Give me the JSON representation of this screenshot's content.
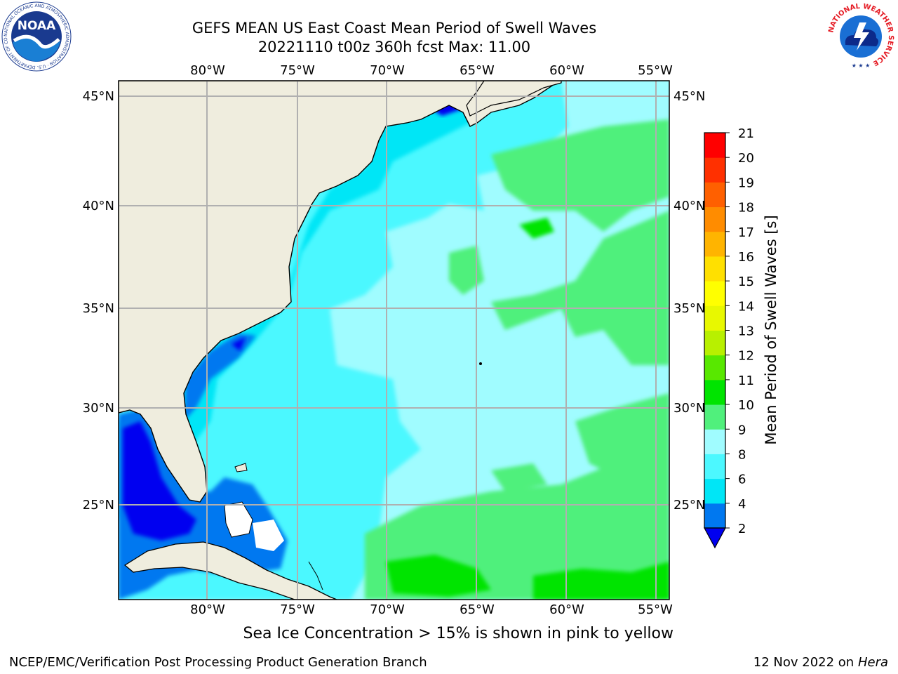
{
  "header": {
    "title_line1": "GEFS MEAN US East Coast Mean Period of Swell Waves",
    "title_line2": "20221110 t00z 360h fcst   Max: 11.00"
  },
  "logos": {
    "left": {
      "name": "NOAA",
      "text": "NOAA",
      "ring_text": "NATIONAL OCEANIC AND ATMOSPHERIC ADMINISTRATION · U.S. DEPARTMENT OF COMMERCE"
    },
    "right": {
      "name": "National Weather Service",
      "ring_text": "NATIONAL WEATHER SERVICE"
    }
  },
  "map": {
    "lon_labels": [
      "80°W",
      "75°W",
      "70°W",
      "65°W",
      "60°W",
      "55°W"
    ],
    "lat_labels": [
      "45°N",
      "40°N",
      "35°N",
      "30°N",
      "25°N"
    ],
    "colors": {
      "land": "#efedde",
      "coastline": "#000000",
      "grid": "#b0b0b0",
      "missing": "#ffffff"
    }
  },
  "colorbar": {
    "label": "Mean Period of Swell Waves [s]",
    "ticks": [
      "2",
      "4",
      "6",
      "8",
      "9",
      "10",
      "11",
      "12",
      "13",
      "14",
      "15",
      "16",
      "17",
      "18",
      "19",
      "20",
      "21"
    ],
    "colors": [
      "#0000f0",
      "#0078f0",
      "#00e6f6",
      "#4cf8ff",
      "#a0fcff",
      "#50f07c",
      "#00e400",
      "#58e800",
      "#b8f000",
      "#e8f800",
      "#ffff00",
      "#ffe000",
      "#ffb400",
      "#ff8c00",
      "#ff6000",
      "#ff3000",
      "#ff0000"
    ]
  },
  "caption": "Sea Ice Concentration > 15% is shown in pink to yellow",
  "footer": {
    "credit": "NCEP/EMC/Verification Post Processing Product Generation Branch",
    "date": "12 Nov 2022 on",
    "host": "Hera"
  }
}
